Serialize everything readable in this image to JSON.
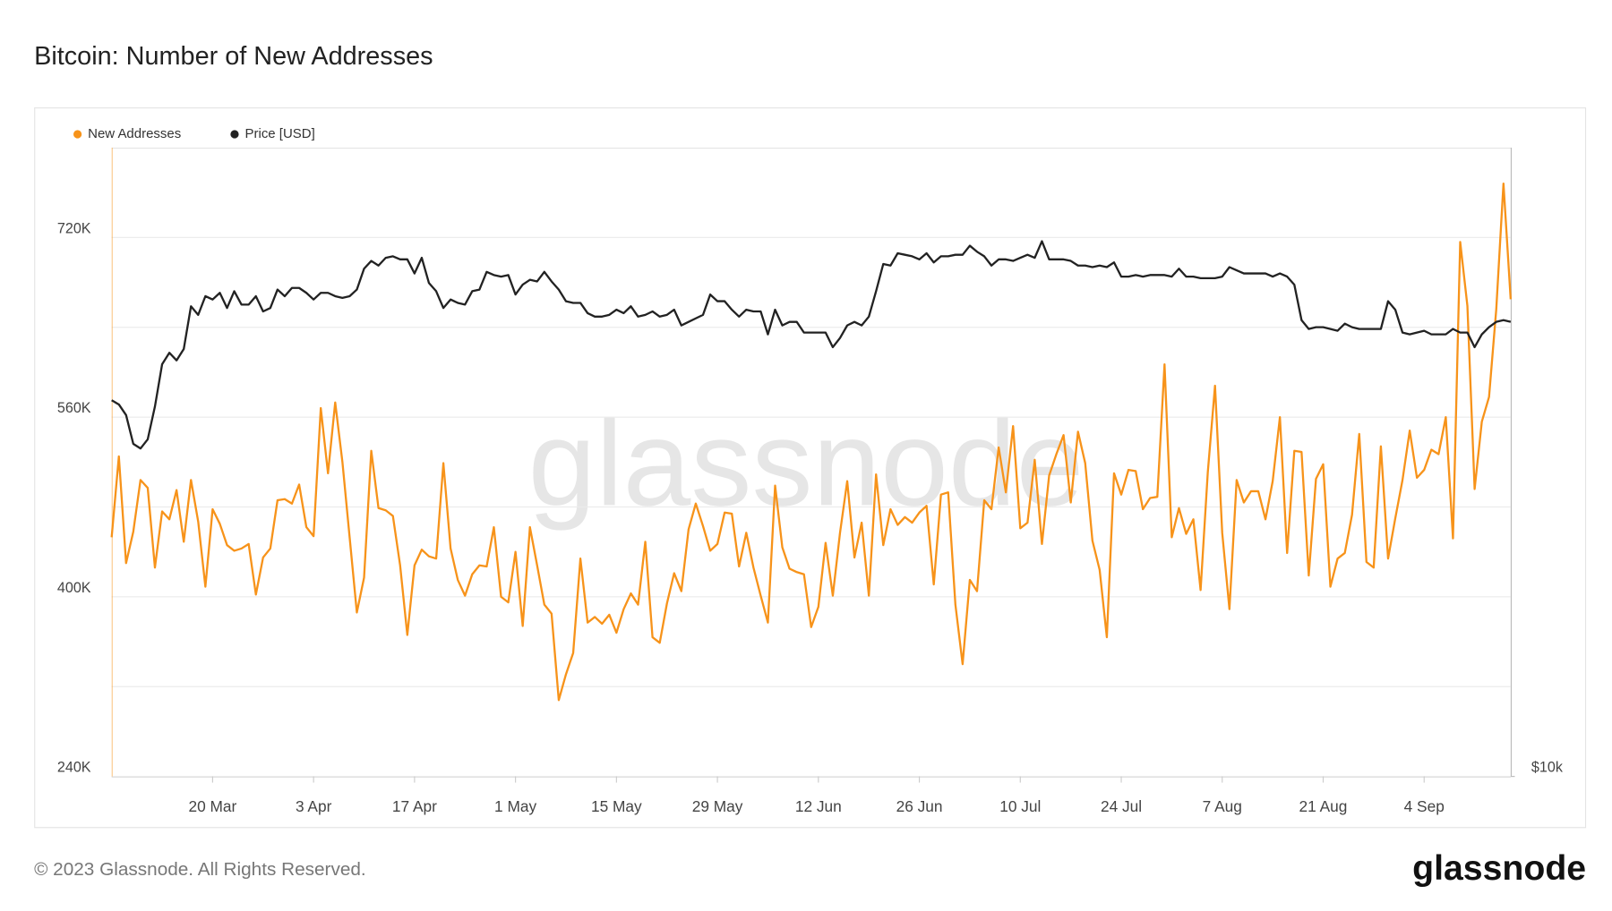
{
  "chart_data": {
    "type": "line",
    "title": "Bitcoin: Number of New Addresses",
    "watermark": "glassnode",
    "footer": "© 2023 Glassnode. All Rights Reserved.",
    "brand": "glassnode",
    "x": [
      "6 Mar",
      "7 Mar",
      "8 Mar",
      "9 Mar",
      "10 Mar",
      "11 Mar",
      "12 Mar",
      "13 Mar",
      "14 Mar",
      "15 Mar",
      "16 Mar",
      "17 Mar",
      "18 Mar",
      "19 Mar",
      "20 Mar",
      "21 Mar",
      "22 Mar",
      "23 Mar",
      "24 Mar",
      "25 Mar",
      "26 Mar",
      "27 Mar",
      "28 Mar",
      "29 Mar",
      "30 Mar",
      "31 Mar",
      "1 Apr",
      "2 Apr",
      "3 Apr",
      "4 Apr",
      "5 Apr",
      "6 Apr",
      "7 Apr",
      "8 Apr",
      "9 Apr",
      "10 Apr",
      "11 Apr",
      "12 Apr",
      "13 Apr",
      "14 Apr",
      "15 Apr",
      "16 Apr",
      "17 Apr",
      "18 Apr",
      "19 Apr",
      "20 Apr",
      "21 Apr",
      "22 Apr",
      "23 Apr",
      "24 Apr",
      "25 Apr",
      "26 Apr",
      "27 Apr",
      "28 Apr",
      "29 Apr",
      "30 Apr",
      "1 May",
      "2 May",
      "3 May",
      "4 May",
      "5 May",
      "6 May",
      "7 May",
      "8 May",
      "9 May",
      "10 May",
      "11 May",
      "12 May",
      "13 May",
      "14 May",
      "15 May",
      "16 May",
      "17 May",
      "18 May",
      "19 May",
      "20 May",
      "21 May",
      "22 May",
      "23 May",
      "24 May",
      "25 May",
      "26 May",
      "27 May",
      "28 May",
      "29 May",
      "30 May",
      "31 May",
      "1 Jun",
      "2 Jun",
      "3 Jun",
      "4 Jun",
      "5 Jun",
      "6 Jun",
      "7 Jun",
      "8 Jun",
      "9 Jun",
      "10 Jun",
      "11 Jun",
      "12 Jun",
      "13 Jun",
      "14 Jun",
      "15 Jun",
      "16 Jun",
      "17 Jun",
      "18 Jun",
      "19 Jun",
      "20 Jun",
      "21 Jun",
      "22 Jun",
      "23 Jun",
      "24 Jun",
      "25 Jun",
      "26 Jun",
      "27 Jun",
      "28 Jun",
      "29 Jun",
      "30 Jun",
      "1 Jul",
      "2 Jul",
      "3 Jul",
      "4 Jul",
      "5 Jul",
      "6 Jul",
      "7 Jul",
      "8 Jul",
      "9 Jul",
      "10 Jul",
      "11 Jul",
      "12 Jul",
      "13 Jul",
      "14 Jul",
      "15 Jul",
      "16 Jul",
      "17 Jul",
      "18 Jul",
      "19 Jul",
      "20 Jul",
      "21 Jul",
      "22 Jul",
      "23 Jul",
      "24 Jul",
      "25 Jul",
      "26 Jul",
      "27 Jul",
      "28 Jul",
      "29 Jul",
      "30 Jul",
      "31 Jul",
      "1 Aug",
      "2 Aug",
      "3 Aug",
      "4 Aug",
      "5 Aug",
      "6 Aug",
      "7 Aug",
      "8 Aug",
      "9 Aug",
      "10 Aug",
      "11 Aug",
      "12 Aug",
      "13 Aug",
      "14 Aug",
      "15 Aug",
      "16 Aug",
      "17 Aug",
      "18 Aug",
      "19 Aug",
      "20 Aug",
      "21 Aug",
      "22 Aug",
      "23 Aug",
      "24 Aug",
      "25 Aug",
      "26 Aug",
      "27 Aug",
      "28 Aug",
      "29 Aug",
      "30 Aug",
      "31 Aug",
      "1 Sep",
      "2 Sep",
      "3 Sep",
      "4 Sep",
      "5 Sep",
      "6 Sep",
      "7 Sep",
      "8 Sep",
      "9 Sep",
      "10 Sep",
      "11 Sep",
      "12 Sep",
      "13 Sep",
      "14 Sep",
      "15 Sep",
      "16 Sep"
    ],
    "xticks": [
      "20 Mar",
      "3 Apr",
      "17 Apr",
      "1 May",
      "15 May",
      "29 May",
      "12 Jun",
      "26 Jun",
      "10 Jul",
      "24 Jul",
      "7 Aug",
      "21 Aug",
      "4 Sep"
    ],
    "ylim": [
      240000,
      800000
    ],
    "yticks": [
      {
        "value": 240000,
        "label": "240K"
      },
      {
        "value": 400000,
        "label": "400K"
      },
      {
        "value": 560000,
        "label": "560K"
      },
      {
        "value": 720000,
        "label": "720K"
      }
    ],
    "yminor": [
      320000,
      480000,
      640000
    ],
    "y2lim": [
      10000,
      38500
    ],
    "y2log": true,
    "y2ticks": [
      {
        "value": 10000,
        "label": "$10k"
      }
    ],
    "grid": true,
    "legend": "top-left",
    "series": [
      {
        "name": "New Addresses",
        "color": "#f7931a",
        "values": [
          453000,
          525000,
          430000,
          458000,
          504000,
          497000,
          426000,
          476000,
          469000,
          495000,
          449000,
          504000,
          467000,
          409000,
          478000,
          465000,
          446000,
          441000,
          443000,
          447000,
          402000,
          435000,
          443000,
          486000,
          487000,
          483000,
          500000,
          462000,
          454000,
          568000,
          510000,
          573000,
          520000,
          453000,
          386000,
          417000,
          530000,
          479000,
          477000,
          472000,
          428000,
          366000,
          428000,
          442000,
          436000,
          434000,
          519000,
          443000,
          415000,
          401000,
          420000,
          428000,
          427000,
          462000,
          400000,
          395000,
          440000,
          374000,
          462000,
          428000,
          393000,
          385000,
          308000,
          331000,
          350000,
          434000,
          377000,
          382000,
          376000,
          384000,
          368000,
          389000,
          403000,
          393000,
          449000,
          364000,
          359000,
          394000,
          421000,
          405000,
          460000,
          483000,
          463000,
          441000,
          447000,
          475000,
          474000,
          427000,
          457000,
          426000,
          401000,
          377000,
          499000,
          444000,
          425000,
          422000,
          420000,
          373000,
          391000,
          448000,
          401000,
          457000,
          503000,
          435000,
          466000,
          401000,
          509000,
          446000,
          478000,
          464000,
          471000,
          466000,
          475000,
          481000,
          411000,
          491000,
          493000,
          393000,
          340000,
          415000,
          405000,
          486000,
          478000,
          533000,
          493000,
          552000,
          461000,
          466000,
          522000,
          447000,
          508000,
          527000,
          544000,
          484000,
          547000,
          519000,
          450000,
          424000,
          364000,
          510000,
          491000,
          513000,
          512000,
          478000,
          488000,
          489000,
          607000,
          453000,
          479000,
          456000,
          469000,
          406000,
          511000,
          588000,
          457000,
          389000,
          504000,
          484000,
          494000,
          494000,
          469000,
          503000,
          560000,
          439000,
          530000,
          529000,
          419000,
          505000,
          518000,
          409000,
          434000,
          439000,
          473000,
          545000,
          431000,
          426000,
          534000,
          434000,
          470000,
          504000,
          548000,
          506000,
          513000,
          531000,
          527000,
          560000,
          452000,
          716000,
          659000,
          496000,
          556000,
          578000,
          656000,
          768000,
          665000
        ]
      },
      {
        "name": "Price [USD]",
        "color": "#222222",
        "axis": "y2",
        "values": [
          22400,
          22200,
          21700,
          20400,
          20200,
          20600,
          22100,
          24200,
          24800,
          24400,
          25000,
          27400,
          26900,
          28000,
          27800,
          28200,
          27300,
          28300,
          27500,
          27500,
          28000,
          27100,
          27300,
          28400,
          28000,
          28500,
          28500,
          28200,
          27800,
          28200,
          28200,
          28000,
          27900,
          28000,
          28400,
          29700,
          30200,
          29900,
          30400,
          30500,
          30300,
          30300,
          29400,
          30400,
          28800,
          28300,
          27300,
          27800,
          27600,
          27500,
          28300,
          28400,
          29500,
          29300,
          29200,
          29300,
          28100,
          28700,
          29000,
          28900,
          29500,
          28900,
          28400,
          27700,
          27600,
          27600,
          27000,
          26800,
          26800,
          26900,
          27200,
          27000,
          27400,
          26800,
          26900,
          27100,
          26800,
          26900,
          27200,
          26300,
          26500,
          26700,
          26900,
          28100,
          27700,
          27700,
          27200,
          26800,
          27200,
          27100,
          27100,
          25800,
          27200,
          26300,
          26500,
          26500,
          25900,
          25900,
          25900,
          25900,
          25100,
          25600,
          26300,
          26500,
          26300,
          26800,
          28300,
          30000,
          29900,
          30700,
          30600,
          30500,
          30300,
          30700,
          30100,
          30500,
          30500,
          30600,
          30600,
          31200,
          30800,
          30500,
          29900,
          30300,
          30300,
          30200,
          30400,
          30600,
          30400,
          31500,
          30300,
          30300,
          30300,
          30200,
          29900,
          29900,
          29800,
          29900,
          29800,
          30100,
          29200,
          29200,
          29300,
          29200,
          29300,
          29300,
          29300,
          29200,
          29700,
          29200,
          29200,
          29100,
          29100,
          29100,
          29200,
          29800,
          29600,
          29400,
          29400,
          29400,
          29400,
          29200,
          29400,
          29200,
          28700,
          26600,
          26100,
          26200,
          26200,
          26100,
          26000,
          26400,
          26200,
          26100,
          26100,
          26100,
          26100,
          27700,
          27200,
          25900,
          25800,
          25900,
          26000,
          25800,
          25800,
          25800,
          26100,
          25900,
          25900,
          25100,
          25800,
          26200,
          26500,
          26600,
          26500
        ]
      }
    ]
  }
}
